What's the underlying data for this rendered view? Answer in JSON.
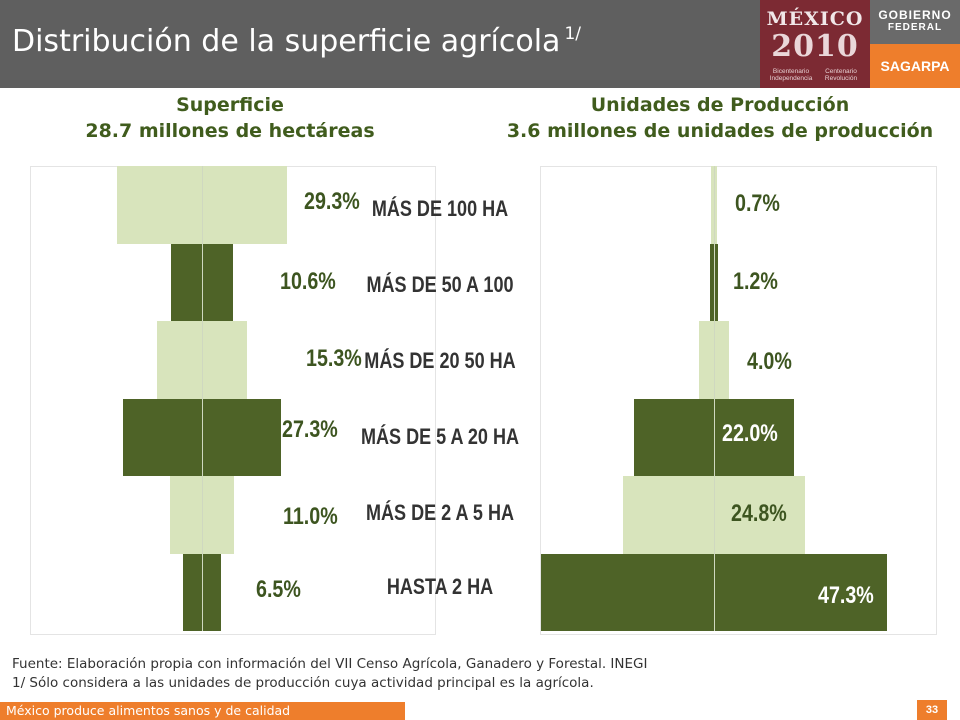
{
  "header": {
    "title": "Distribución de la superficie agrícola",
    "title_superscript": "1/",
    "logo_mexico": {
      "word": "MÉXICO",
      "year": "2010",
      "sub_left": "Bicentenario Independencia",
      "sub_right": "Centenario Revolución"
    },
    "gobierno": {
      "line1": "GOBIERNO",
      "line2": "FEDERAL"
    },
    "sagarpa": "SAGARPA"
  },
  "colors": {
    "header_bg": "#5f5f5f",
    "dark_green": "#4e6327",
    "light_green": "#d8e4bc",
    "title_green": "#405c1d",
    "accent_orange": "#ee7e2c",
    "logo_red": "#7c2a33"
  },
  "chart_data": [
    {
      "type": "bar",
      "orientation": "horizontal-centered",
      "title": "Superficie",
      "subtitle": "28.7 millones de hectáreas",
      "categories": [
        "MÁS DE 100 HA",
        "MÁS DE 50 A 100",
        "MÁS DE 20 50 HA",
        "MÁS DE 5 A 20 HA",
        "MÁS DE 2 A 5 HA",
        "HASTA 2 HA"
      ],
      "values": [
        29.3,
        10.6,
        15.3,
        27.3,
        11.0,
        6.5
      ],
      "labels": [
        "29.3%",
        "10.6%",
        "15.3%",
        "27.3%",
        "11.0%",
        "6.5%"
      ],
      "fill": [
        "light",
        "dark",
        "light",
        "dark",
        "light",
        "dark"
      ]
    },
    {
      "type": "bar",
      "orientation": "horizontal-centered",
      "title": "Unidades de Producción",
      "subtitle": "3.6 millones de unidades de producción",
      "categories": [
        "MÁS DE 100 HA",
        "MÁS DE 50 A 100",
        "MÁS DE 20 50 HA",
        "MÁS DE 5 A 20 HA",
        "MÁS DE 2 A 5 HA",
        "HASTA 2 HA"
      ],
      "values": [
        0.7,
        1.2,
        4.0,
        22.0,
        24.8,
        47.3
      ],
      "labels": [
        "0.7%",
        "1.2%",
        "4.0%",
        "22.0%",
        "24.8%",
        "47.3%"
      ],
      "fill": [
        "light",
        "dark",
        "light",
        "dark",
        "light",
        "dark"
      ]
    }
  ],
  "footer": {
    "source": "Fuente: Elaboración propia con información del VII Censo Agrícola, Ganadero y Forestal. INEGI",
    "note": "1/ Sólo considera a las unidades de producción cuya actividad principal es la agrícola.",
    "slogan": "México produce alimentos sanos y de calidad",
    "page": "33"
  }
}
